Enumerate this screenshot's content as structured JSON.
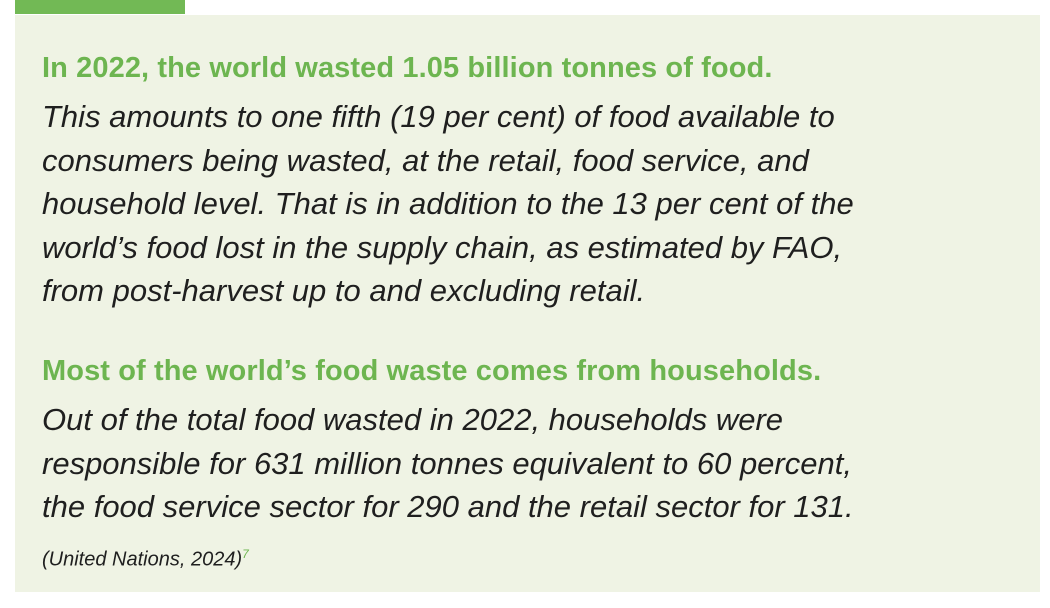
{
  "sections": [
    {
      "heading": "In 2022, the world wasted 1.05 billion tonnes of food.",
      "body_lines": [
        "This amounts to one fifth (19 per cent) of food available to",
        "consumers being wasted, at the retail, food service, and",
        "household level. That is in addition to the 13 per cent of the",
        "world’s food lost in the supply chain, as estimated by FAO,",
        "from post-harvest up to and excluding retail."
      ]
    },
    {
      "heading": "Most of the world’s food waste comes from households.",
      "body_lines": [
        "Out of the total food wasted in 2022, households were",
        "responsible for 631 million tonnes equivalent to 60 percent,",
        "the food service sector for 290 and the retail sector for 131."
      ]
    }
  ],
  "citation": {
    "text": "(United Nations, 2024)",
    "footnote": "7"
  }
}
